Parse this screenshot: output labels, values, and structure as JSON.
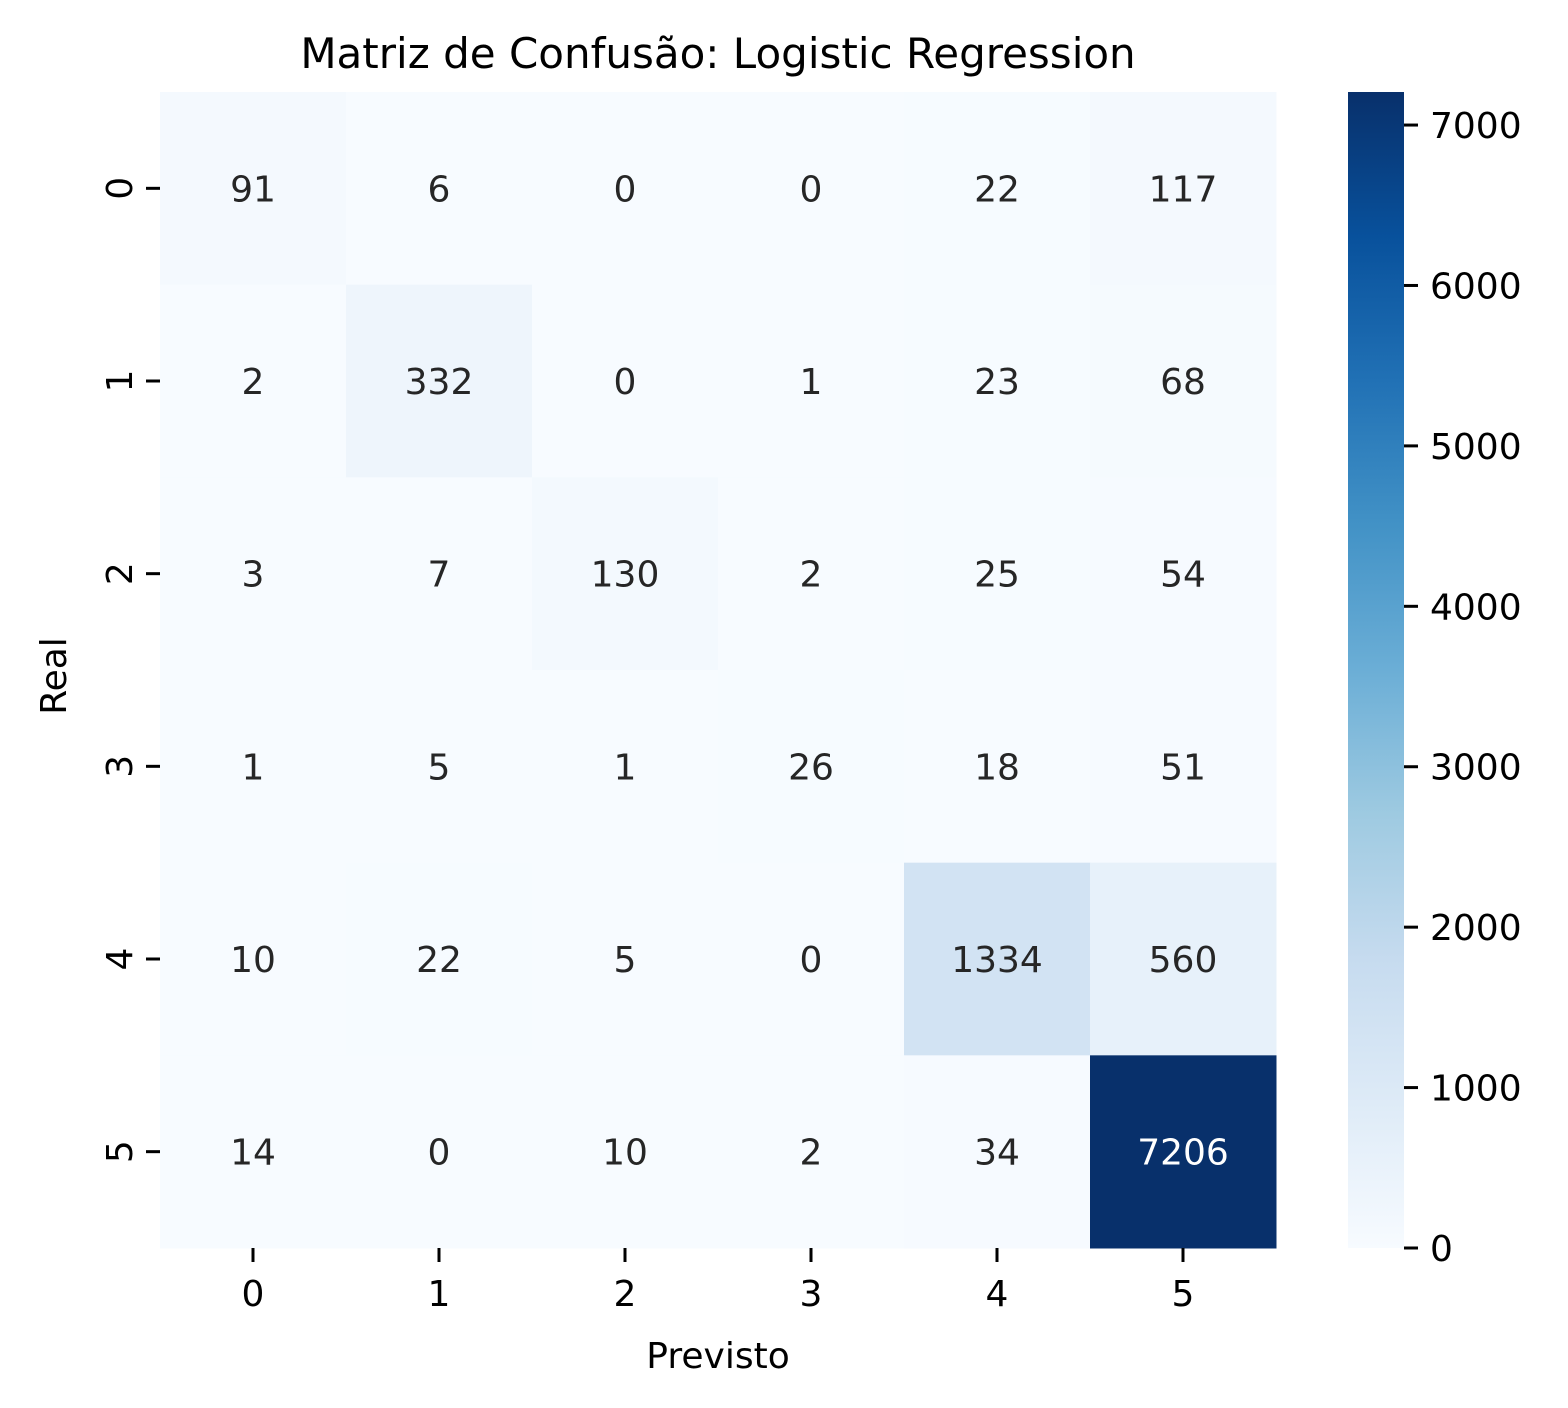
{
  "chart_data": {
    "type": "heatmap",
    "title": "Matriz de Confusão: Logistic Regression",
    "xlabel": "Previsto",
    "ylabel": "Real",
    "x_categories": [
      "0",
      "1",
      "2",
      "3",
      "4",
      "5"
    ],
    "y_categories": [
      "0",
      "1",
      "2",
      "3",
      "4",
      "5"
    ],
    "values": [
      [
        91,
        6,
        0,
        0,
        22,
        117
      ],
      [
        2,
        332,
        0,
        1,
        23,
        68
      ],
      [
        3,
        7,
        130,
        2,
        25,
        54
      ],
      [
        1,
        5,
        1,
        26,
        18,
        51
      ],
      [
        10,
        22,
        5,
        0,
        1334,
        560
      ],
      [
        14,
        0,
        10,
        2,
        34,
        7206
      ]
    ],
    "colormap": "Blues",
    "colorbar": {
      "range": [
        0,
        7206
      ],
      "ticks": [
        "0",
        "1000",
        "2000",
        "3000",
        "4000",
        "5000",
        "6000",
        "7000"
      ]
    },
    "annotated": true,
    "grid": false
  }
}
